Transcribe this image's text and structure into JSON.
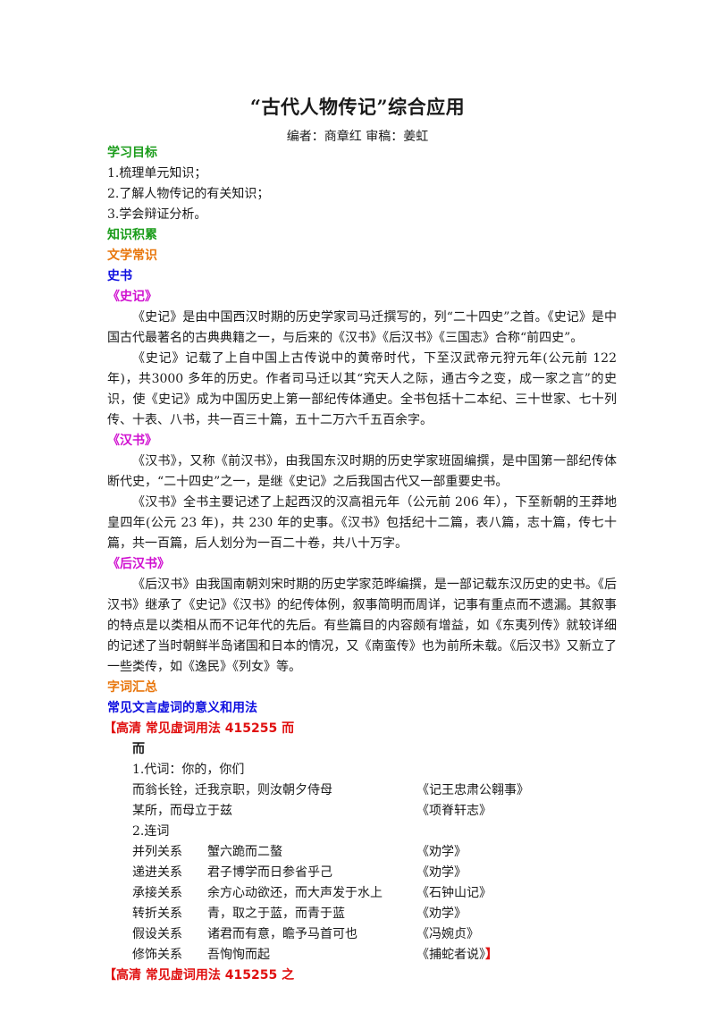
{
  "title": "“古代人物传记”综合应用",
  "byline": "编者：商章红  审稿：姜虹",
  "goals": {
    "heading": "学习目标",
    "items": [
      "1.梳理单元知识；",
      "2.了解人物传记的有关知识；",
      "3.学会辩证分析。"
    ]
  },
  "knowledge": {
    "heading": "知识积累",
    "literature_heading": "文学常识",
    "history_heading": "史书",
    "shiji": {
      "heading": "《史记》",
      "p1": "《史记》是由中国西汉时期的历史学家司马迁撰写的，列“二十四史”之首。《史记》是中国古代最著名的古典典籍之一，与后来的《汉书》《后汉书》《三国志》合称“前四史”。",
      "p2": "《史记》记载了上自中国上古传说中的黄帝时代，下至汉武帝元狩元年(公元前 122 年)，共3000 多年的历史。作者司马迁以其“究天人之际，通古今之变，成一家之言”的史识，使《史记》成为中国历史上第一部纪传体通史。全书包括十二本纪、三十世家、七十列传、十表、八书，共一百三十篇，五十二万六千五百余字。"
    },
    "hanshu": {
      "heading": "《汉书》",
      "p1": "《汉书》，又称《前汉书》，由我国东汉时期的历史学家班固编撰，是中国第一部纪传体断代史，“二十四史”之一，是继《史记》之后我国古代又一部重要史书。",
      "p2": "《汉书》全书主要记述了上起西汉的汉高祖元年（公元前 206 年），下至新朝的王莽地皇四年(公元 23 年)，共 230 年的史事。《汉书》包括纪十二篇，表八篇，志十篇，传七十篇，共一百篇，后人划分为一百二十卷，共八十万字。"
    },
    "houhanshu": {
      "heading": "《后汉书》",
      "p1": "《后汉书》由我国南朝刘宋时期的历史学家范晔编撰，是一部记载东汉历史的史书。《后汉书》继承了《史记》《汉书》的纪传体例，叙事简明而周详，记事有重点而不遗漏。其叙事的特点是以类相从而不记年代的先后。有些篇目的内容颇有增益，如《东夷列传》就较详细的记述了当时朝鲜半岛诸国和日本的情况，又《南蛮传》也为前所未载。《后汉书》又新立了一些类传，如《逸民》《列女》等。"
    }
  },
  "vocab": {
    "heading": "字词汇总",
    "subheading": "常见文言虚词的意义和用法",
    "banner1": "【高清   常见虚词用法   415255   而",
    "word": "而",
    "pron_label": "1.代词：你的，你们",
    "pron_rows": [
      {
        "text": "而翁长铨，迁我京职，则汝朝夕侍母",
        "source": "《记王忠肃公翱事》"
      },
      {
        "text": "某所，而母立于兹",
        "source": "《项脊轩志》"
      }
    ],
    "conj_label": "2.连词",
    "conj_rows": [
      {
        "type": "并列关系",
        "text": "蟹六跪而二螯",
        "source": "《劝学》"
      },
      {
        "type": "递进关系",
        "text": "君子博学而日参省乎己",
        "source": "《劝学》"
      },
      {
        "type": "承接关系",
        "text": "余方心动欲还，而大声发于水上",
        "source": "《石钟山记》"
      },
      {
        "type": "转折关系",
        "text": "青，取之于蓝，而青于蓝",
        "source": "《劝学》"
      },
      {
        "type": "假设关系",
        "text": "诸君而有意，瞻予马首可也",
        "source": "《冯婉贞》"
      },
      {
        "type": "修饰关系",
        "text": "吾恂恂而起",
        "source": "《捕蛇者说》"
      }
    ],
    "close_bracket": "】",
    "banner2": "【高清   常见虚词用法   415255   之"
  }
}
